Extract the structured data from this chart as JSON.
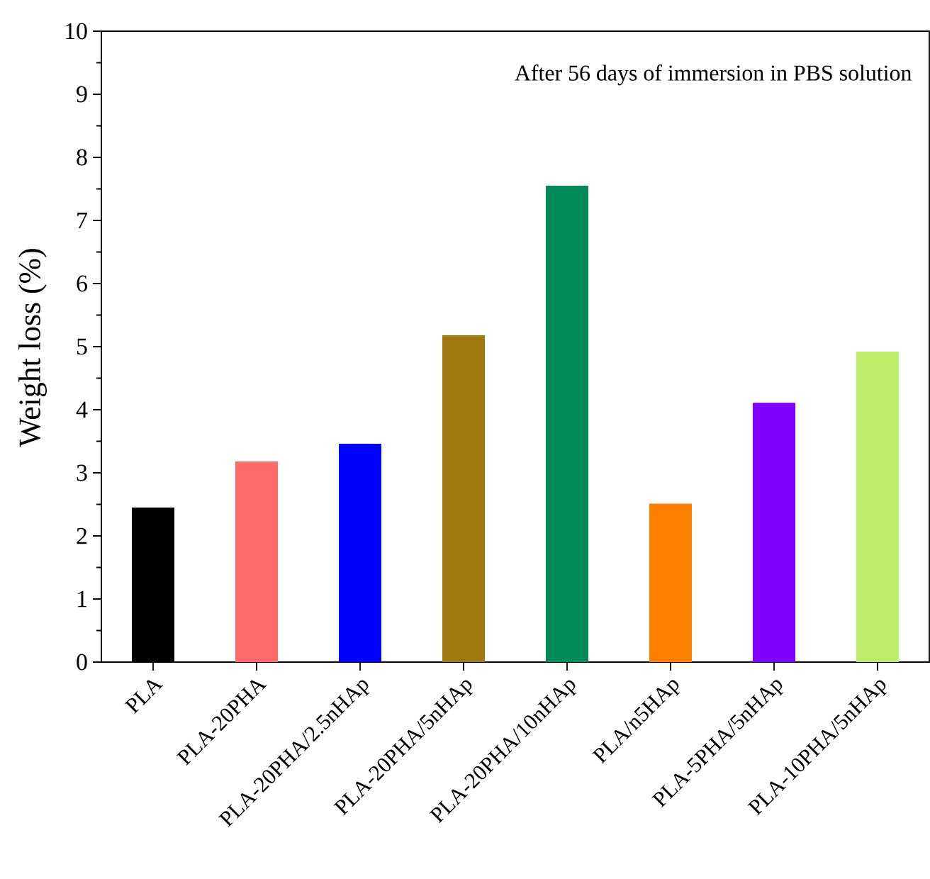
{
  "chart_data": {
    "type": "bar",
    "ylabel": "Weight loss (%)",
    "categories": [
      "PLA",
      "PLA-20PHA",
      "PLA-20PHA/2.5nHAp",
      "PLA-20PHA/5nHAp",
      "PLA-20PHA/10nHAp",
      "PLA/n5HAp",
      "PLA-5PHA/5nHAp",
      "PLA-10PHA/5nHAp"
    ],
    "values": [
      2.45,
      3.18,
      3.46,
      5.18,
      7.55,
      2.51,
      4.11,
      4.92
    ],
    "colors": [
      "#000000",
      "#ff6a6a",
      "#0000ff",
      "#a07810",
      "#008b58",
      "#ff8000",
      "#8000ff",
      "#bdec68"
    ],
    "ylim": [
      0,
      10
    ],
    "yticks": [
      0,
      1,
      2,
      3,
      4,
      5,
      6,
      7,
      8,
      9,
      10
    ],
    "annotations": [
      "After 56 days of  immersion in PBS solution"
    ]
  }
}
